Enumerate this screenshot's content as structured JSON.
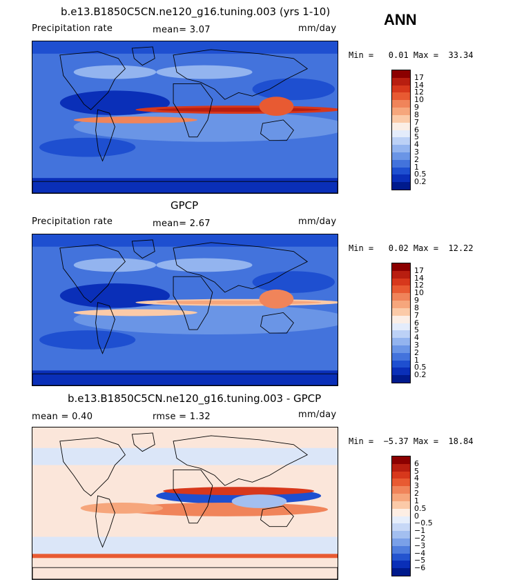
{
  "season": "ANN",
  "panels": [
    {
      "title": "b.e13.B1850C5CN.ne120_g16.tuning.003 (yrs 1-10)",
      "left_label": "Precipitation rate",
      "mid_label": "mean=   3.07",
      "units": "mm/day",
      "min_text": "Min =   0.01 Max =  33.34",
      "colorbar_levels": [
        "17",
        "14",
        "12",
        "10",
        "9",
        "8",
        "7",
        "6",
        "5",
        "4",
        "3",
        "2",
        "1",
        "0.5",
        "0.2"
      ],
      "colorbar_colors": [
        "#8b0000",
        "#b81e10",
        "#d7381c",
        "#e85a32",
        "#f0845a",
        "#f6a67c",
        "#fbcaa8",
        "#fbeee6",
        "#e4ecfb",
        "#bcd1f6",
        "#93b4ef",
        "#6a95e6",
        "#4373dc",
        "#1e4fd0",
        "#0a2fb8",
        "#001a8c"
      ]
    },
    {
      "title": "GPCP",
      "left_label": "Precipitation rate",
      "mid_label": "mean=   2.67",
      "units": "mm/day",
      "min_text": "Min =   0.02 Max =  12.22",
      "colorbar_levels": [
        "17",
        "14",
        "12",
        "10",
        "9",
        "8",
        "7",
        "6",
        "5",
        "4",
        "3",
        "2",
        "1",
        "0.5",
        "0.2"
      ],
      "colorbar_colors": [
        "#8b0000",
        "#b81e10",
        "#d7381c",
        "#e85a32",
        "#f0845a",
        "#f6a67c",
        "#fbcaa8",
        "#fbeee6",
        "#e4ecfb",
        "#bcd1f6",
        "#93b4ef",
        "#6a95e6",
        "#4373dc",
        "#1e4fd0",
        "#0a2fb8",
        "#001a8c"
      ]
    },
    {
      "title": "b.e13.B1850C5CN.ne120_g16.tuning.003 - GPCP",
      "left_label": "mean =    0.40",
      "mid_label": "rmse =    1.32",
      "units": "mm/day",
      "min_text": "Min =  −5.37 Max =  18.84",
      "colorbar_levels": [
        "6",
        "5",
        "4",
        "3",
        "2",
        "1",
        "0.5",
        "0",
        "−0.5",
        "−1",
        "−2",
        "−3",
        "−4",
        "−5",
        "−6"
      ],
      "colorbar_colors": [
        "#8b0000",
        "#b81e10",
        "#d7381c",
        "#e85a32",
        "#f0845a",
        "#f6a67c",
        "#fbcaa8",
        "#fdeee4",
        "#e6eefb",
        "#c7d8f6",
        "#a3bff0",
        "#7aa0e8",
        "#4f7ddd",
        "#2454cf",
        "#0a2fb8",
        "#001a8c"
      ]
    }
  ],
  "chart_data": [
    {
      "type": "heatmap",
      "title": "b.e13.B1850C5CN.ne120_g16.tuning.003 (yrs 1-10)",
      "variable": "Precipitation rate",
      "units": "mm/day",
      "mean": 3.07,
      "min": 0.01,
      "max": 33.34,
      "levels": [
        0.2,
        0.5,
        1,
        2,
        3,
        4,
        5,
        6,
        7,
        8,
        9,
        10,
        12,
        14,
        17
      ]
    },
    {
      "type": "heatmap",
      "title": "GPCP",
      "variable": "Precipitation rate",
      "units": "mm/day",
      "mean": 2.67,
      "min": 0.02,
      "max": 12.22,
      "levels": [
        0.2,
        0.5,
        1,
        2,
        3,
        4,
        5,
        6,
        7,
        8,
        9,
        10,
        12,
        14,
        17
      ]
    },
    {
      "type": "heatmap",
      "title": "b.e13.B1850C5CN.ne120_g16.tuning.003 - GPCP",
      "units": "mm/day",
      "mean": 0.4,
      "rmse": 1.32,
      "min": -5.37,
      "max": 18.84,
      "levels": [
        -6,
        -5,
        -4,
        -3,
        -2,
        -1,
        -0.5,
        0,
        0.5,
        1,
        2,
        3,
        4,
        5,
        6
      ]
    }
  ]
}
